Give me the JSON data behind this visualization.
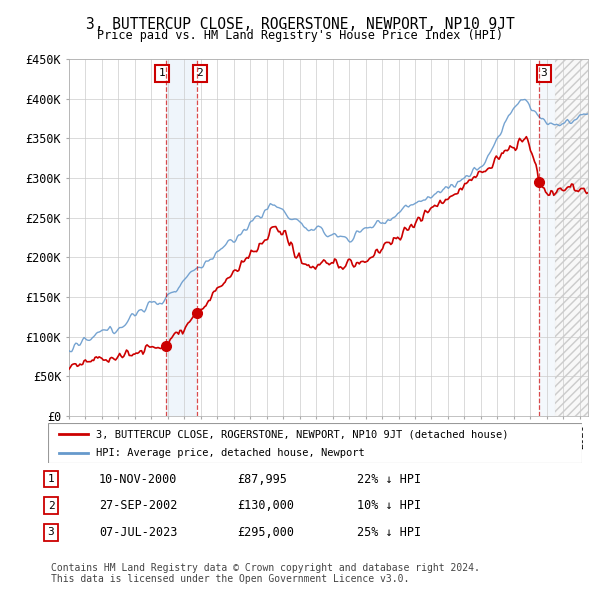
{
  "title": "3, BUTTERCUP CLOSE, ROGERSTONE, NEWPORT, NP10 9JT",
  "subtitle": "Price paid vs. HM Land Registry's House Price Index (HPI)",
  "ylim": [
    0,
    450000
  ],
  "yticks": [
    0,
    50000,
    100000,
    150000,
    200000,
    250000,
    300000,
    350000,
    400000,
    450000
  ],
  "ytick_labels": [
    "£0",
    "£50K",
    "£100K",
    "£150K",
    "£200K",
    "£250K",
    "£300K",
    "£350K",
    "£400K",
    "£450K"
  ],
  "xmin": 1995.0,
  "xmax": 2026.5,
  "sales": [
    {
      "date": 2000.87,
      "price": 87995,
      "label": "1"
    },
    {
      "date": 2002.75,
      "price": 130000,
      "label": "2"
    },
    {
      "date": 2023.52,
      "price": 295000,
      "label": "3"
    }
  ],
  "sale_rows": [
    {
      "num": "1",
      "date": "10-NOV-2000",
      "price": "£87,995",
      "pct": "22% ↓ HPI"
    },
    {
      "num": "2",
      "date": "27-SEP-2002",
      "price": "£130,000",
      "pct": "10% ↓ HPI"
    },
    {
      "num": "3",
      "date": "07-JUL-2023",
      "price": "£295,000",
      "pct": "25% ↓ HPI"
    }
  ],
  "legend_line1": "3, BUTTERCUP CLOSE, ROGERSTONE, NEWPORT, NP10 9JT (detached house)",
  "legend_line2": "HPI: Average price, detached house, Newport",
  "footer1": "Contains HM Land Registry data © Crown copyright and database right 2024.",
  "footer2": "This data is licensed under the Open Government Licence v3.0.",
  "red_color": "#cc0000",
  "blue_color": "#6699cc",
  "background_color": "#ffffff",
  "grid_color": "#cccccc",
  "hatch_start": 2024.5
}
